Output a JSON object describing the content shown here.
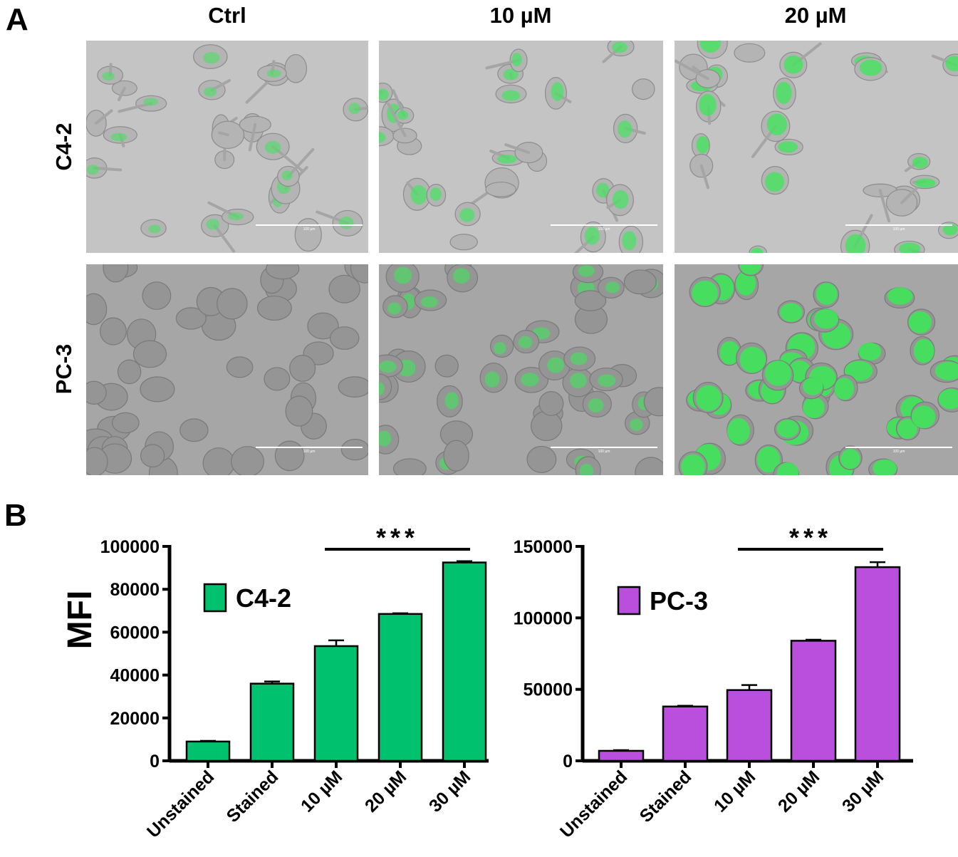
{
  "panel_a": {
    "letter": "A",
    "columns": [
      "Ctrl",
      "10 µM",
      "20 µM"
    ],
    "rows": [
      "C4-2",
      "PC-3"
    ],
    "scale_bar_label": "100 µm",
    "colors": {
      "cell_green": "#3ee65a",
      "c42_background": "#c4c4c4",
      "pc3_background": "#a6a6a6"
    },
    "green_intensity": [
      [
        0.35,
        0.55,
        0.75
      ],
      [
        0.05,
        0.45,
        1.0
      ]
    ]
  },
  "panel_b": {
    "letter": "B"
  },
  "chart_data": [
    {
      "type": "bar",
      "categories": [
        "Unstained",
        "Stained",
        "10 µM",
        "20 µM",
        "30 µM"
      ],
      "series": [
        {
          "name": "C4-2",
          "values": [
            9000,
            36000,
            53500,
            68500,
            92500
          ],
          "errors": [
            300,
            1000,
            2700,
            300,
            600
          ],
          "color": "#00c16e"
        }
      ],
      "ylabel": "MFI",
      "ylim": [
        0,
        100000
      ],
      "yticks": [
        "0",
        "20000",
        "40000",
        "60000",
        "80000",
        "100000"
      ],
      "ytick_values": [
        0,
        20000,
        40000,
        60000,
        80000,
        100000
      ],
      "significance": {
        "label": "***",
        "from": "10 µM",
        "to": "30 µM"
      },
      "legend": "top-left"
    },
    {
      "type": "bar",
      "categories": [
        "Unstained",
        "Stained",
        "10 µM",
        "20 µM",
        "30 µM"
      ],
      "series": [
        {
          "name": "PC-3",
          "values": [
            7000,
            38000,
            49500,
            84000,
            135500
          ],
          "errors": [
            500,
            500,
            3500,
            700,
            3500
          ],
          "color": "#b94fdc"
        }
      ],
      "ylabel": "",
      "ylim": [
        0,
        150000
      ],
      "yticks": [
        "0",
        "50000",
        "100000",
        "150000"
      ],
      "ytick_values": [
        0,
        50000,
        100000,
        150000
      ],
      "significance": {
        "label": "***",
        "from": "10 µM",
        "to": "30 µM"
      },
      "legend": "top-left"
    }
  ]
}
